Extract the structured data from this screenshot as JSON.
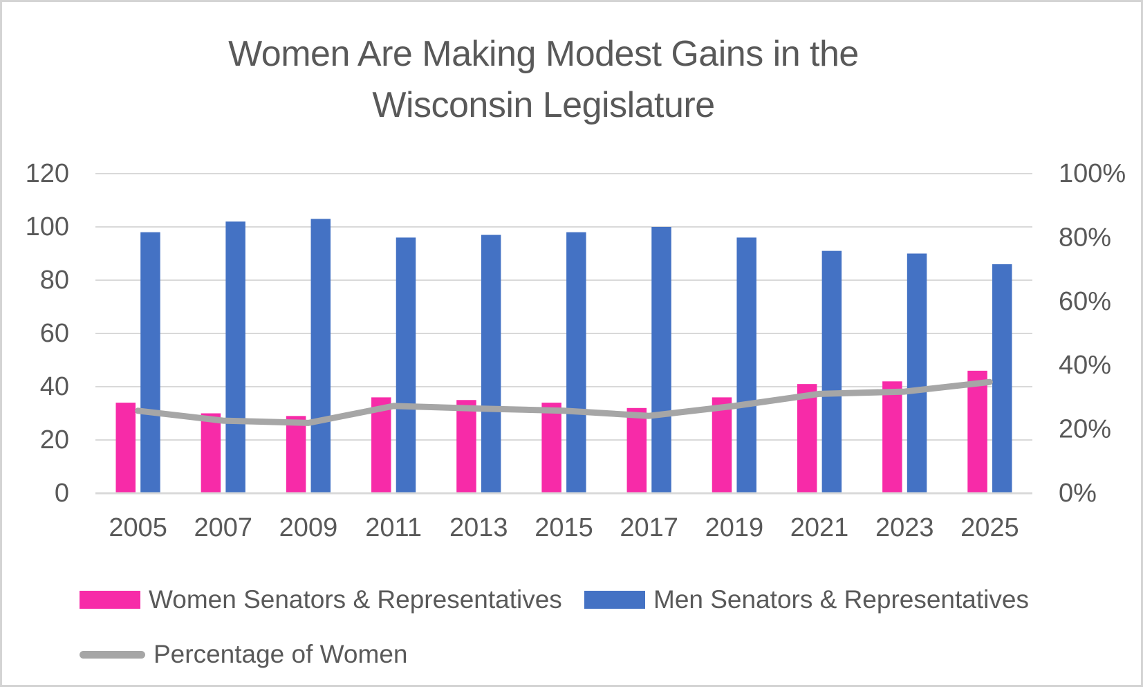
{
  "chart_data": {
    "type": "bar+line",
    "title": "Women Are Making Modest Gains in the Wisconsin Legislature",
    "title_lines": [
      "Women Are Making Modest Gains in the",
      "Wisconsin Legislature"
    ],
    "categories": [
      "2005",
      "2007",
      "2009",
      "2011",
      "2013",
      "2015",
      "2017",
      "2019",
      "2021",
      "2023",
      "2025"
    ],
    "series": [
      {
        "name": "Women Senators & Representatives",
        "type": "bar",
        "axis": "left",
        "color": "#F72BA8",
        "values": [
          34,
          30,
          29,
          36,
          35,
          34,
          32,
          36,
          41,
          42,
          46
        ]
      },
      {
        "name": "Men Senators & Representatives",
        "type": "bar",
        "axis": "left",
        "color": "#4472C4",
        "values": [
          98,
          102,
          103,
          96,
          97,
          98,
          100,
          96,
          91,
          90,
          86
        ]
      },
      {
        "name": "Percentage of Women",
        "type": "line",
        "axis": "right",
        "color": "#A6A6A6",
        "values": [
          25.8,
          22.7,
          22.0,
          27.3,
          26.5,
          25.8,
          24.2,
          27.3,
          31.1,
          31.8,
          34.8
        ]
      }
    ],
    "left_axis": {
      "min": 0,
      "max": 120,
      "tick_step": 20,
      "tick_labels": [
        "0",
        "20",
        "40",
        "60",
        "80",
        "100",
        "120"
      ]
    },
    "right_axis": {
      "min": 0,
      "max": 100,
      "tick_step": 20,
      "tick_labels": [
        "0%",
        "20%",
        "40%",
        "60%",
        "80%",
        "100%"
      ]
    },
    "grid": true,
    "legend_position": "bottom-left"
  },
  "colors": {
    "text": "#595959",
    "grid": "#D9D9D9",
    "axis_line": "#D9D9D9",
    "background": "#FFFFFF",
    "border": "#D4D4D4"
  }
}
